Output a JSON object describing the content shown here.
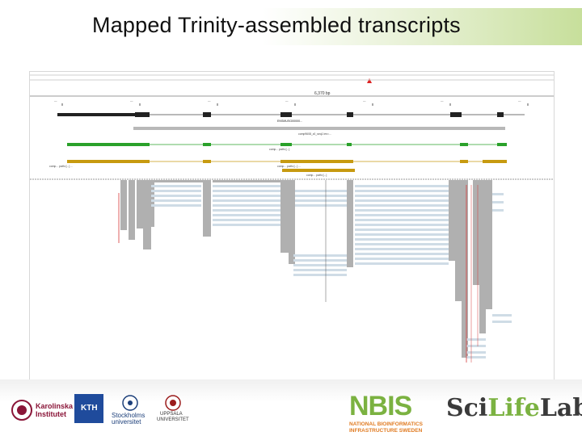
{
  "slide": {
    "title": "Mapped Trinity-assembled transcripts"
  },
  "igv": {
    "scale_label": "6,370 bp",
    "coords": [
      "—",
      "—",
      "—",
      "—",
      "—",
      "—",
      "—"
    ],
    "gene_label": "ENSMUSG00000...",
    "track_labels": [
      "comp9608_c0_seq1 len=...",
      "comp... path=[...]",
      "comp... path=[...] ...",
      "comp... path=[...] ...",
      "comp... path=[...]"
    ]
  },
  "footer": {
    "karolinska": [
      "Karolinska",
      "Institutet"
    ],
    "kth": "KTH",
    "stockholm": [
      "Stockholms",
      "universitet"
    ],
    "uppsala": [
      "UPPSALA",
      "UNIVERSITET"
    ],
    "nbis_main": "NBIS",
    "nbis_sub": [
      "NATIONAL BIOINFORMATICS",
      "INFRASTRUCTURE SWEDEN"
    ],
    "scilifelab_a": "Sci",
    "scilifelab_b": "Life",
    "scilifelab_c": "Lab"
  },
  "colors": {
    "accent_green": "#b7d67a",
    "gene_black": "#222222",
    "transcript_green": "#2aa12a",
    "transcript_gold": "#c79a10",
    "read_gray": "#b0b0b0",
    "read_blue": "#cfdce6",
    "mismatch_red": "#d63a3a"
  }
}
